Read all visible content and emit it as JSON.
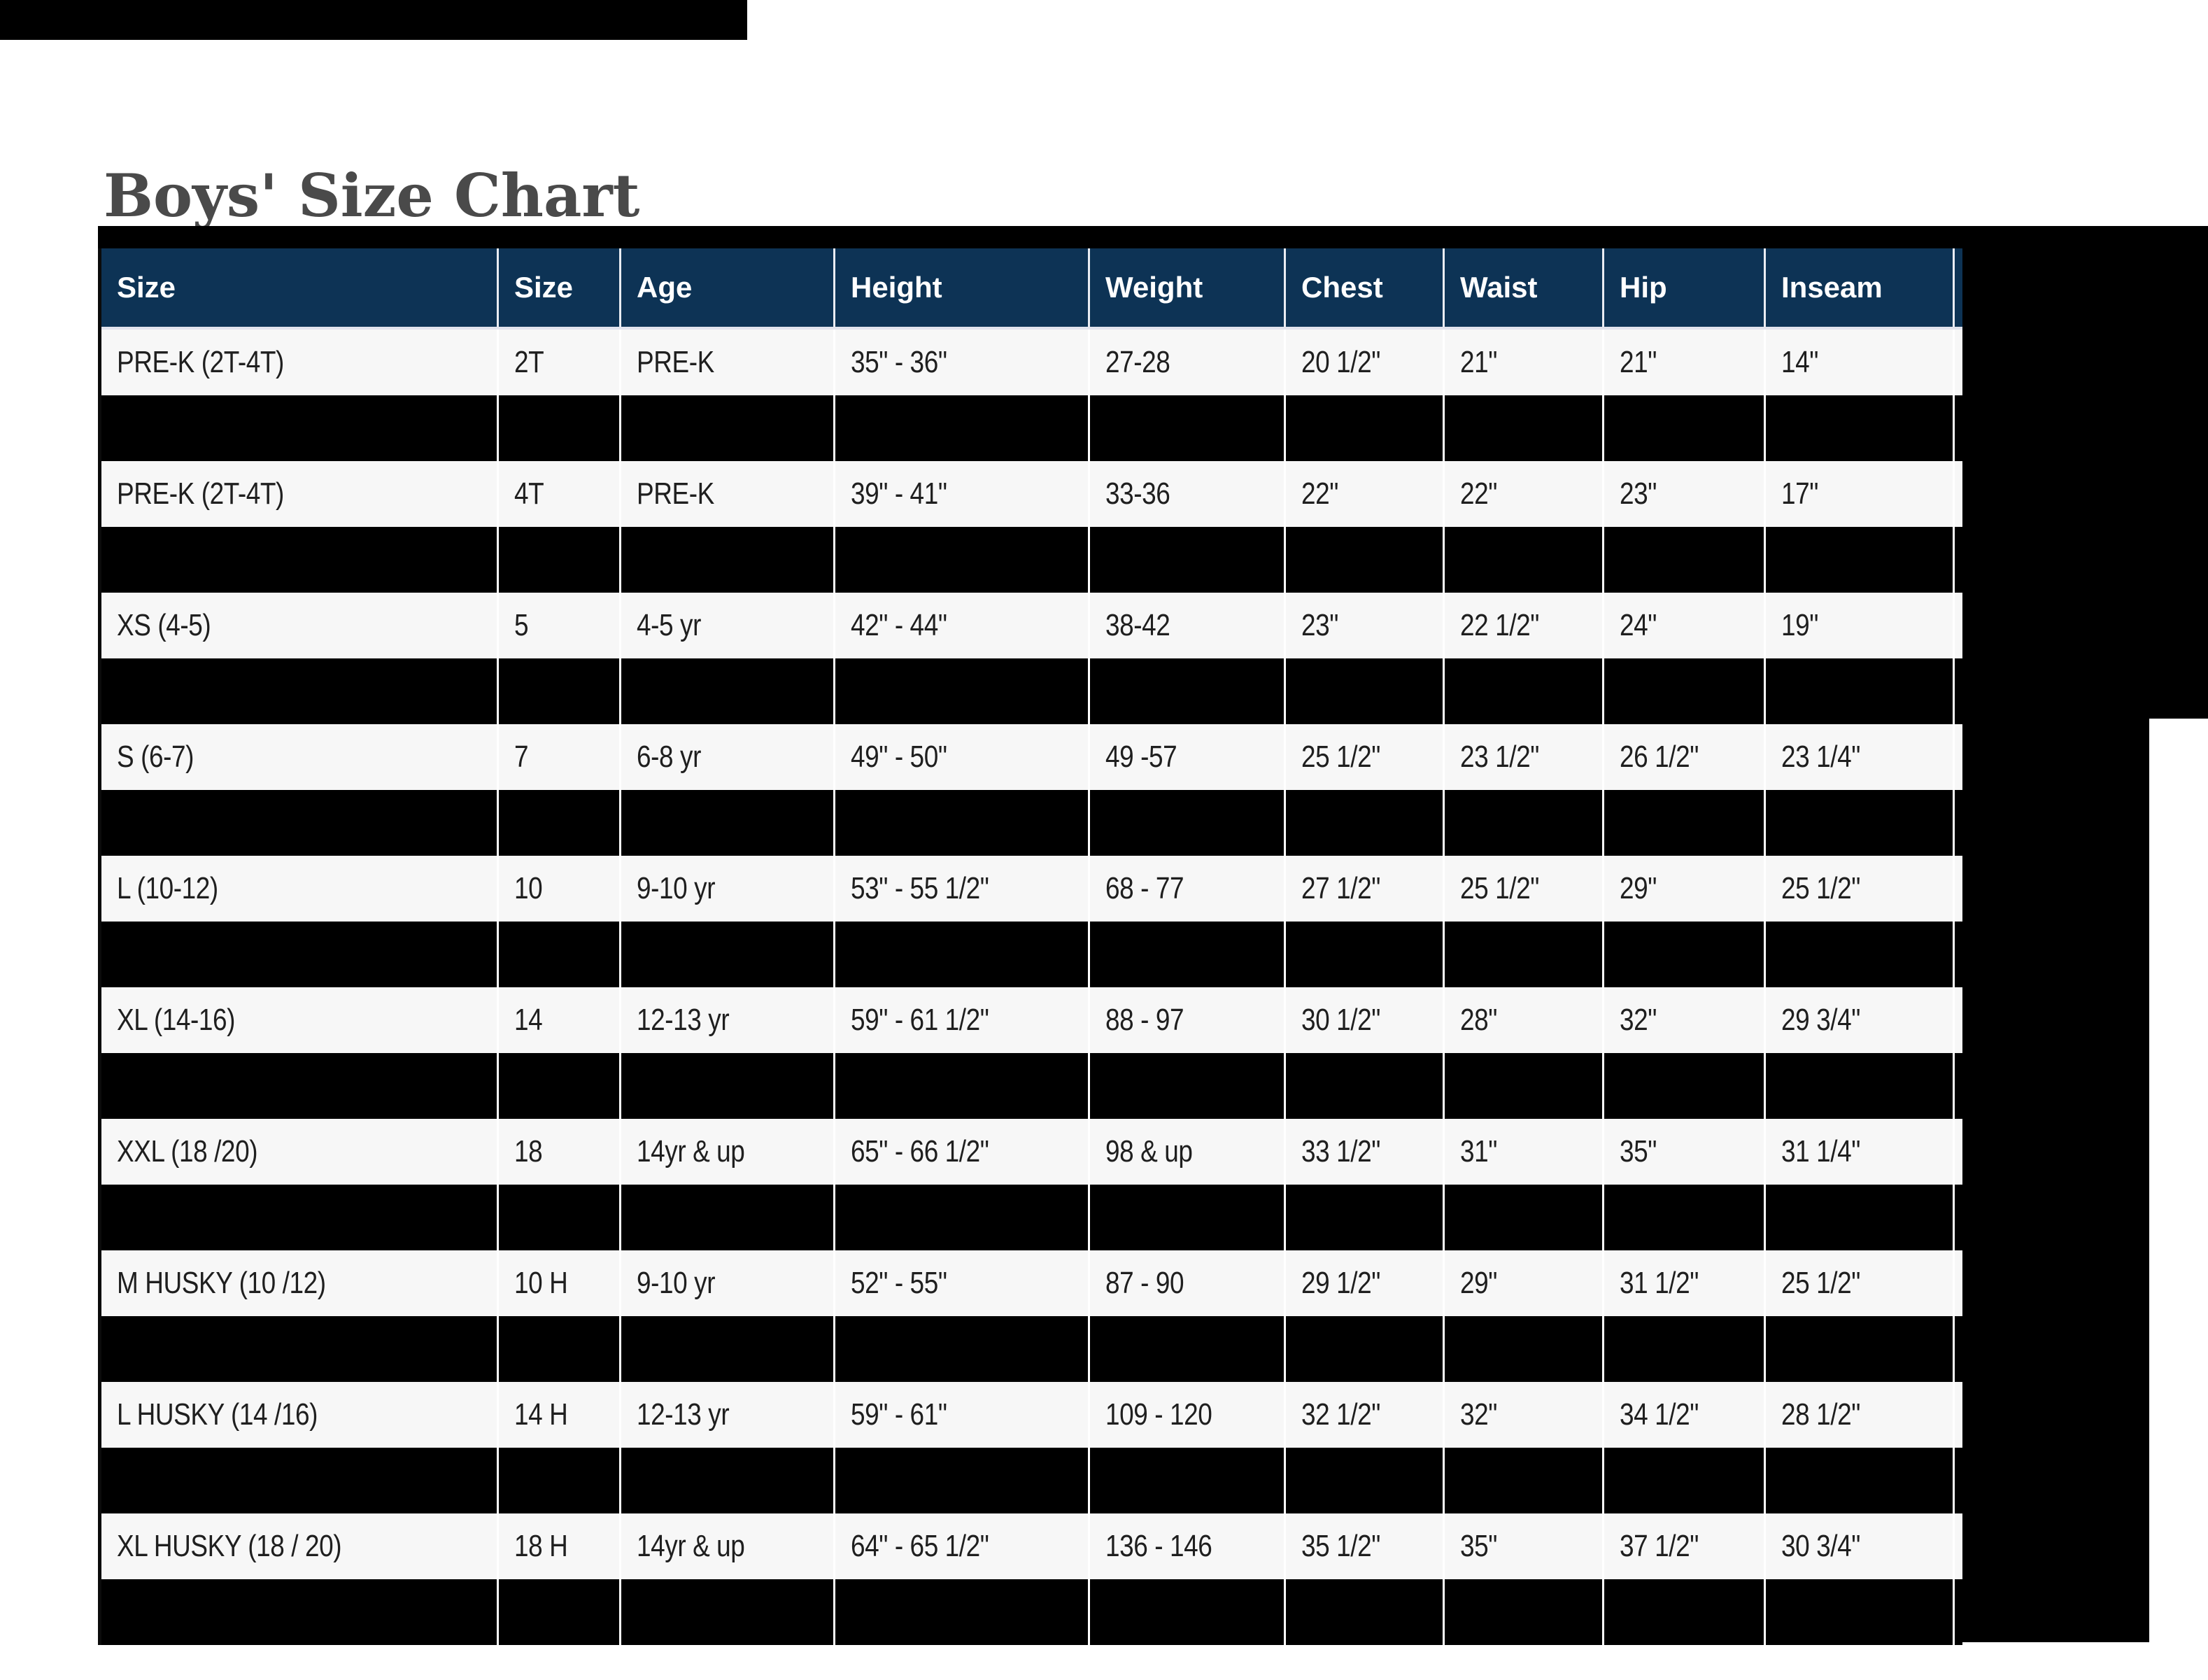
{
  "page": {
    "title": "Boys' Size Chart"
  },
  "colors": {
    "header_bg": "#0d3355",
    "header_text": "#ffffff",
    "row_bg": "#f7f7f7",
    "redacted": "#000000",
    "title_text": "#4a4a4a",
    "cell_text": "#1f1f1f"
  },
  "table": {
    "columns": [
      "Size",
      "Size",
      "Age",
      "Height",
      "Weight",
      "Chest",
      "Waist",
      "Hip",
      "Inseam"
    ],
    "rows": [
      {
        "cells": [
          "PRE-K (2T-4T)",
          "2T",
          "PRE-K",
          "35\" - 36\"",
          "27-28",
          "20 1/2\"",
          "21\"",
          "21\"",
          "14\""
        ]
      },
      {
        "cells": [
          "PRE-K (2T-4T)",
          "4T",
          "PRE-K",
          "39\" - 41\"",
          "33-36",
          "22\"",
          "22\"",
          "23\"",
          "17\""
        ]
      },
      {
        "cells": [
          "XS (4-5)",
          "5",
          "4-5 yr",
          "42\" - 44\"",
          "38-42",
          "23\"",
          "22 1/2\"",
          "24\"",
          "19\""
        ]
      },
      {
        "cells": [
          "S (6-7)",
          "7",
          "6-8 yr",
          "49\" - 50\"",
          "49 -57",
          "25 1/2\"",
          "23 1/2\"",
          "26 1/2\"",
          "23 1/4\""
        ]
      },
      {
        "cells": [
          "L (10-12)",
          "10",
          "9-10 yr",
          "53\" - 55 1/2\"",
          "68 - 77",
          "27 1/2\"",
          "25 1/2\"",
          "29\"",
          "25 1/2\""
        ]
      },
      {
        "cells": [
          "XL (14-16)",
          "14",
          "12-13 yr",
          "59\" - 61 1/2\"",
          "88 - 97",
          "30 1/2\"",
          "28\"",
          "32\"",
          "29 3/4\""
        ]
      },
      {
        "cells": [
          "XXL (18 /20)",
          "18",
          "14yr & up",
          "65\" - 66 1/2\"",
          "98 & up",
          "33 1/2\"",
          "31\"",
          "35\"",
          "31 1/4\""
        ]
      },
      {
        "cells": [
          "M HUSKY (10 /12)",
          "10 H",
          "9-10 yr",
          "52\" - 55\"",
          "87 - 90",
          "29 1/2\"",
          "29\"",
          "31 1/2\"",
          "25 1/2\""
        ]
      },
      {
        "cells": [
          "L HUSKY (14 /16)",
          "14 H",
          "12-13 yr",
          "59\" - 61\"",
          "109 - 120",
          "32 1/2\"",
          "32\"",
          "34 1/2\"",
          "28 1/2\""
        ]
      },
      {
        "cells": [
          "XL HUSKY (18 / 20)",
          "18 H",
          "14yr & up",
          "64\" - 65 1/2\"",
          "136 - 146",
          "35 1/2\"",
          "35\"",
          "37 1/2\"",
          "30 3/4\""
        ]
      }
    ]
  }
}
